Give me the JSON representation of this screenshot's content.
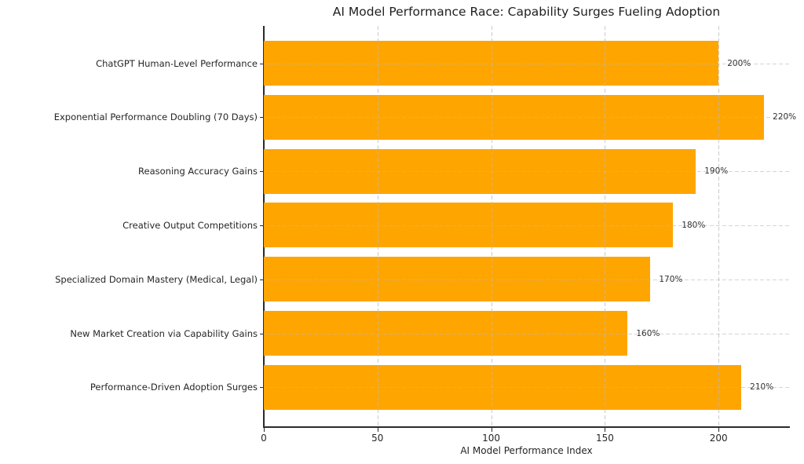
{
  "chart_data": {
    "type": "bar",
    "orientation": "horizontal",
    "title": "AI Model Performance Race: Capability Surges Fueling Adoption",
    "xlabel": "AI Model Performance Index",
    "ylabel": "",
    "categories": [
      "ChatGPT Human-Level Performance",
      "Exponential Performance Doubling (70 Days)",
      "Reasoning Accuracy Gains",
      "Creative Output Competitions",
      "Specialized Domain Mastery (Medical, Legal)",
      "New Market Creation via Capability Gains",
      "Performance-Driven Adoption Surges"
    ],
    "values": [
      200,
      220,
      190,
      180,
      170,
      160,
      210
    ],
    "value_labels": [
      "200%",
      "220%",
      "190%",
      "180%",
      "170%",
      "160%",
      "210%"
    ],
    "xticks": [
      0,
      50,
      100,
      150,
      200
    ],
    "xlim": [
      0,
      231
    ],
    "grid": true,
    "grid_style": "dashed",
    "legend": "none",
    "bar_color": "#FFA500",
    "grid_color": "#c9c9c9",
    "text_color": "#262626"
  }
}
